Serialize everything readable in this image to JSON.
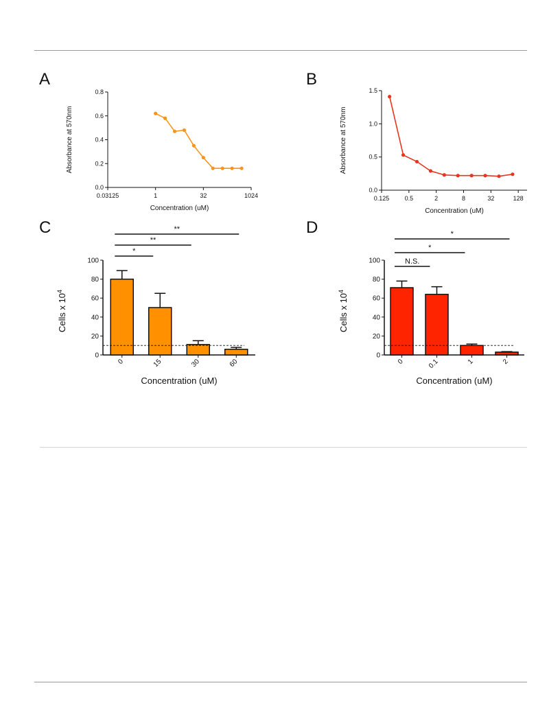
{
  "colors": {
    "orange": "#F7941D",
    "red": "#E8351E",
    "bar_orange": "#FF9000",
    "bar_red": "#FF2400"
  },
  "panels": {
    "A": {
      "label": "A"
    },
    "B": {
      "label": "B"
    },
    "C": {
      "label": "C"
    },
    "D": {
      "label": "D"
    }
  },
  "chart_data": [
    {
      "id": "A",
      "type": "line",
      "xscale": "log2",
      "xlim": [
        0.03125,
        1024
      ],
      "ylim": [
        0,
        0.8
      ],
      "x_ticks": [
        0.03125,
        1,
        32,
        1024
      ],
      "x_tick_labels": [
        "0.03125",
        "1",
        "32",
        "1024"
      ],
      "y_ticks": [
        0,
        0.2,
        0.4,
        0.6,
        0.8
      ],
      "y_tick_labels": [
        "0.0",
        "0.2",
        "0.4",
        "0.6",
        "0.8"
      ],
      "xlabel": "Concentration (uM)",
      "ylabel": "Absorbance at 570nm",
      "color": "#F7941D",
      "x": [
        1,
        2,
        4,
        8,
        16,
        32,
        64,
        128,
        256,
        512
      ],
      "y": [
        0.62,
        0.58,
        0.47,
        0.48,
        0.35,
        0.25,
        0.16,
        0.16,
        0.16,
        0.16
      ]
    },
    {
      "id": "B",
      "type": "line",
      "xscale": "log2",
      "xlim": [
        0.125,
        200
      ],
      "ylim": [
        0,
        1.5
      ],
      "x_ticks": [
        0.125,
        0.5,
        2,
        8,
        32,
        128
      ],
      "x_tick_labels": [
        "0.125",
        "0.5",
        "2",
        "8",
        "32",
        "128"
      ],
      "y_ticks": [
        0,
        0.5,
        1.0,
        1.5
      ],
      "y_tick_labels": [
        "0.0",
        "0.5",
        "1.0",
        "1.5"
      ],
      "xlabel": "Concentration (uM)",
      "ylabel": "Absorbance at 570nm",
      "color": "#E8351E",
      "x": [
        0.1875,
        0.375,
        0.75,
        1.5,
        3,
        6,
        12,
        24,
        48,
        96
      ],
      "y": [
        1.41,
        0.53,
        0.43,
        0.29,
        0.23,
        0.22,
        0.22,
        0.22,
        0.21,
        0.24
      ]
    },
    {
      "id": "C",
      "type": "bar",
      "categories": [
        "0",
        "15",
        "30",
        "60"
      ],
      "values": [
        80,
        50,
        11,
        6
      ],
      "errors": [
        9,
        15,
        4,
        2
      ],
      "ylim": [
        0,
        100
      ],
      "y_ticks": [
        0,
        20,
        40,
        60,
        80,
        100
      ],
      "y_tick_labels": [
        "0",
        "20",
        "40",
        "60",
        "80",
        "100"
      ],
      "xlabel": "Concentration (uM)",
      "ylabel": "Cells x 10",
      "ylabel_sup": "4",
      "dashed_line": 10,
      "color": "#FF9000",
      "significance": [
        {
          "from": 0,
          "to": 1,
          "label": "*"
        },
        {
          "from": 0,
          "to": 2,
          "label": "**"
        },
        {
          "from": 0,
          "to": 3,
          "label": "**"
        }
      ]
    },
    {
      "id": "D",
      "type": "bar",
      "categories": [
        "0",
        "0.1",
        "1",
        "2"
      ],
      "values": [
        71,
        64,
        10,
        3
      ],
      "errors": [
        7,
        8,
        1.5,
        0.5
      ],
      "ylim": [
        0,
        100
      ],
      "y_ticks": [
        0,
        20,
        40,
        60,
        80,
        100
      ],
      "y_tick_labels": [
        "0",
        "20",
        "40",
        "60",
        "80",
        "100"
      ],
      "xlabel": "Concentration (uM)",
      "ylabel": "Cells x 10",
      "ylabel_sup": "4",
      "dashed_line": 10,
      "color": "#FF2400",
      "significance": [
        {
          "from": 0,
          "to": 1,
          "label": "N.S."
        },
        {
          "from": 0,
          "to": 2,
          "label": "*"
        },
        {
          "from": 0,
          "to": 3,
          "label": "*"
        }
      ]
    }
  ]
}
